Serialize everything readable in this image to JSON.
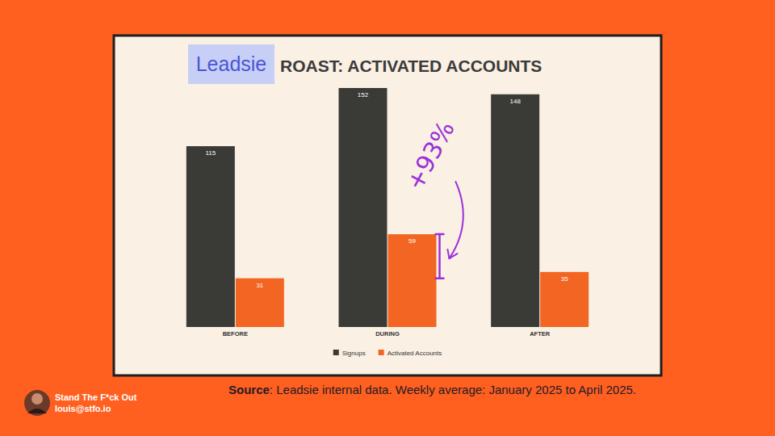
{
  "chart_data": {
    "type": "bar",
    "title": "ROAST: ACTIVATED ACCOUNTS",
    "logo": "Leadsie",
    "categories": [
      "BEFORE",
      "DURING",
      "AFTER"
    ],
    "series": [
      {
        "name": "Signups",
        "color": "#3a3a36",
        "values": [
          115,
          152,
          148
        ]
      },
      {
        "name": "Activated Accounts",
        "color": "#f26522",
        "values": [
          31,
          59,
          35
        ]
      }
    ],
    "ylim": [
      0,
      152
    ],
    "tick_labels": "x",
    "data_labels": true,
    "legend": "bottom",
    "grid": false,
    "annotations": [
      {
        "text": "+93%",
        "color": "#9b30d9"
      }
    ]
  },
  "source": {
    "label": "Source",
    "text": ": Leadsie internal data. Weekly average: January 2025 to April 2025."
  },
  "footer": {
    "name": "Stand The F*ck Out",
    "email": "louis@stfo.io"
  }
}
